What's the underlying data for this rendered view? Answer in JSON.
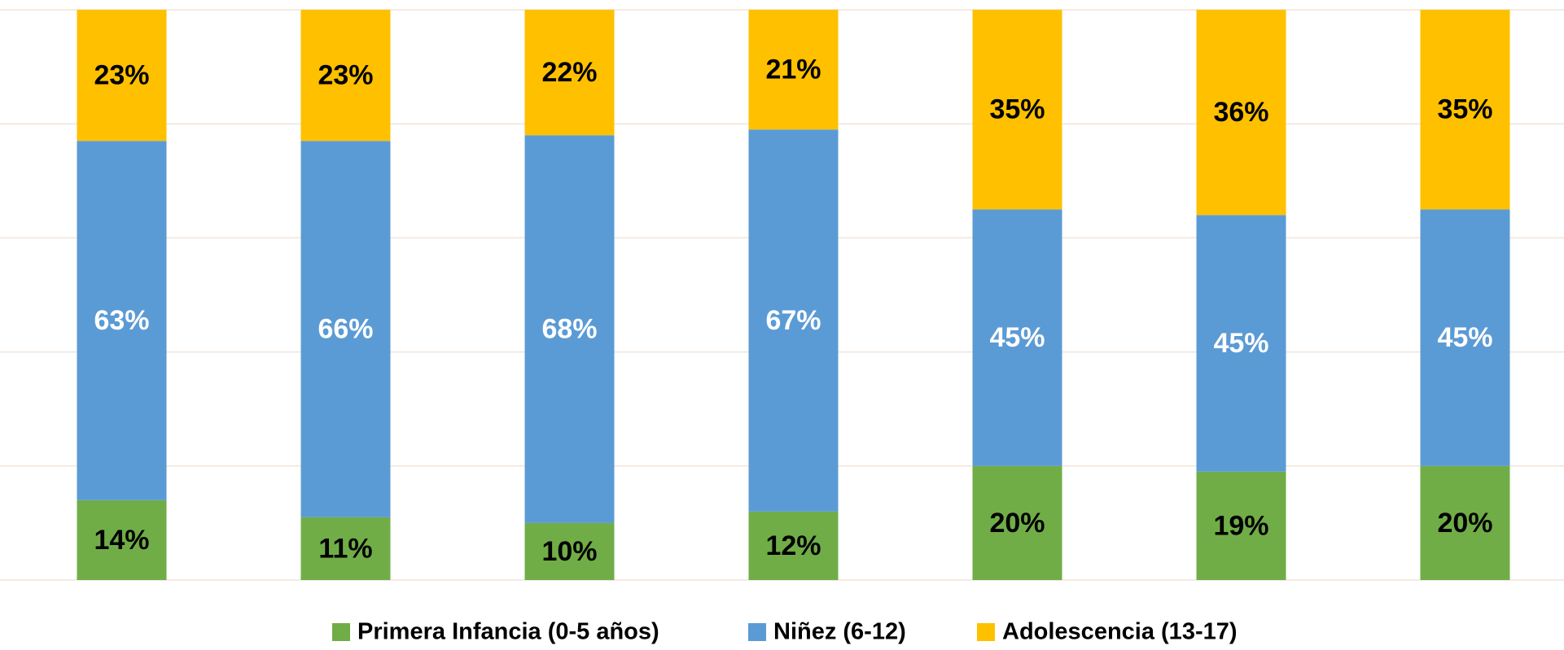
{
  "chart_data": {
    "type": "stacked_bar",
    "categories": [
      null,
      null,
      null,
      null,
      null,
      null,
      null
    ],
    "series": [
      {
        "name": "Primera Infancia (0-5 años)",
        "color": "#70ad47",
        "label_color": "#000000",
        "values": [
          14,
          11,
          10,
          12,
          20,
          19,
          20
        ],
        "value_labels": [
          "14%",
          "11%",
          "10%",
          "12%",
          "20%",
          "19%",
          "20%"
        ]
      },
      {
        "name": "Niñez (6-12)",
        "color": "#5b9bd5",
        "label_color": "#ffffff",
        "values": [
          63,
          66,
          68,
          67,
          45,
          45,
          45
        ],
        "value_labels": [
          "63%",
          "66%",
          "68%",
          "67%",
          "45%",
          "45%",
          "45%"
        ]
      },
      {
        "name": "Adolescencia (13-17)",
        "color": "#ffc000",
        "label_color": "#000000",
        "values": [
          23,
          23,
          22,
          21,
          35,
          36,
          35
        ],
        "value_labels": [
          "23%",
          "23%",
          "22%",
          "21%",
          "35%",
          "36%",
          "35%"
        ]
      }
    ],
    "ylim": [
      0,
      100
    ],
    "yticks": [
      0,
      20,
      40,
      60,
      80,
      100
    ],
    "grid": true,
    "legend": "bottom"
  }
}
